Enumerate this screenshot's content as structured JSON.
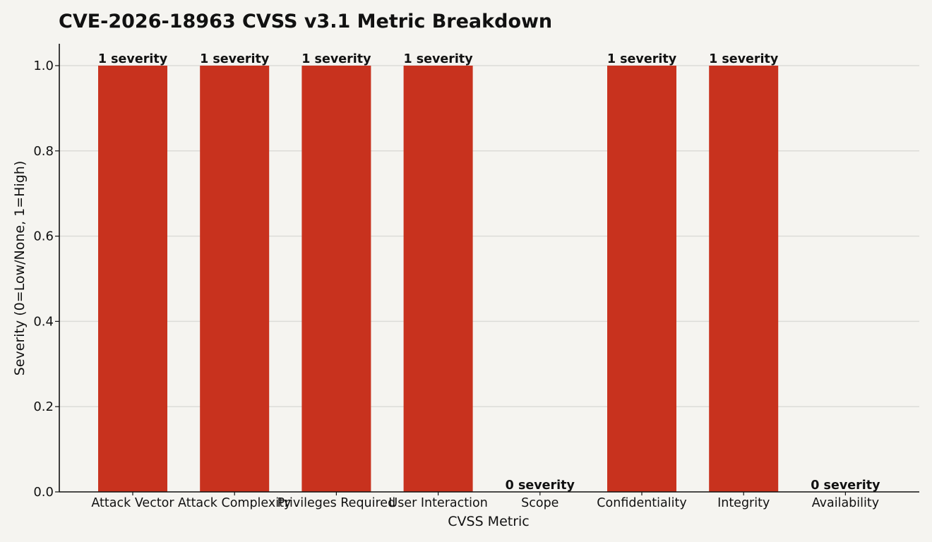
{
  "chart_data": {
    "type": "bar",
    "title": "CVE-2026-18963 CVSS v3.1 Metric Breakdown",
    "xlabel": "CVSS Metric",
    "ylabel": "Severity (0=Low/None, 1=High)",
    "categories": [
      "Attack Vector",
      "Attack Complexity",
      "Privileges Required",
      "User Interaction",
      "Scope",
      "Confidentiality",
      "Integrity",
      "Availability"
    ],
    "values": [
      1,
      1,
      1,
      1,
      0,
      1,
      1,
      0
    ],
    "data_labels": [
      "1 severity",
      "1 severity",
      "1 severity",
      "1 severity",
      "0 severity",
      "1 severity",
      "1 severity",
      "0 severity"
    ],
    "ylim": [
      0,
      1.05
    ],
    "yticks": [
      "0.0",
      "0.2",
      "0.4",
      "0.6",
      "0.8",
      "1.0"
    ],
    "grid": "horizontal",
    "bar_color": "#c8321e",
    "legend": "none"
  }
}
